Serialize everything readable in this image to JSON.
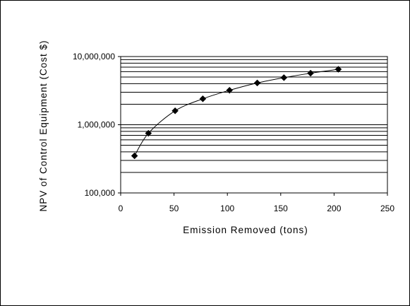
{
  "chart_data": {
    "type": "scatter",
    "title": "",
    "xlabel": "Emission Removed (tons)",
    "ylabel": "NPV of Control Equipment (Cost $)",
    "x_scale": "linear",
    "y_scale": "log",
    "xlim": [
      0,
      250
    ],
    "ylim": [
      100000,
      10000000
    ],
    "x_ticks": [
      0,
      50,
      100,
      150,
      200,
      250
    ],
    "x_tick_labels": [
      "0",
      "50",
      "100",
      "150",
      "200",
      "250"
    ],
    "y_ticks": [
      100000,
      1000000,
      10000000
    ],
    "y_tick_labels": [
      "100,000",
      "1,000,000",
      "10,000,000"
    ],
    "grid": "horizontal major and minor (log) gridlines",
    "legend": "none",
    "series": [
      {
        "marker": "diamond",
        "line": "smoothed",
        "color": "#000000",
        "points": [
          {
            "x": 13,
            "y": 350000
          },
          {
            "x": 26,
            "y": 750000
          },
          {
            "x": 51,
            "y": 1600000
          },
          {
            "x": 77,
            "y": 2400000
          },
          {
            "x": 102,
            "y": 3200000
          },
          {
            "x": 128,
            "y": 4100000
          },
          {
            "x": 153,
            "y": 4900000
          },
          {
            "x": 178,
            "y": 5700000
          },
          {
            "x": 204,
            "y": 6500000
          }
        ]
      }
    ]
  }
}
